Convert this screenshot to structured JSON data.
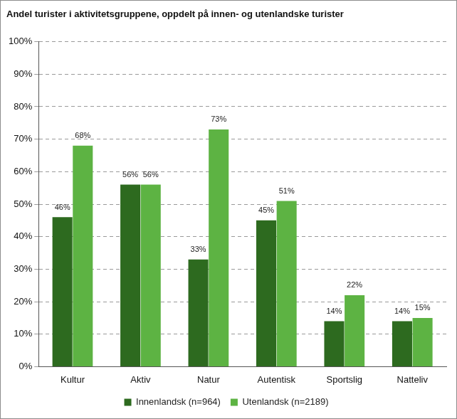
{
  "chart_data": {
    "type": "bar",
    "title": "Andel turister i aktivitetsgruppene, oppdelt på innen- og utenlandske turister",
    "categories": [
      "Kultur",
      "Aktiv",
      "Natur",
      "Autentisk",
      "Sportslig",
      "Natteliv"
    ],
    "series": [
      {
        "name": "Innenlandsk (n=964)",
        "color": "#2d6a1f",
        "values": [
          46,
          56,
          33,
          45,
          14,
          14
        ],
        "value_labels": [
          "46%",
          "56%",
          "33%",
          "45%",
          "14%",
          "14%"
        ]
      },
      {
        "name": "Utenlandsk (n=2189)",
        "color": "#5db343",
        "values": [
          68,
          56,
          73,
          51,
          22,
          15
        ],
        "value_labels": [
          "68%",
          "56%",
          "73%",
          "51%",
          "22%",
          "15%"
        ]
      }
    ],
    "ylim": [
      0,
      100
    ],
    "yticks": [
      {
        "value": 0,
        "label": "0%"
      },
      {
        "value": 10,
        "label": "10%"
      },
      {
        "value": 20,
        "label": "20%"
      },
      {
        "value": 30,
        "label": "30%"
      },
      {
        "value": 40,
        "label": "40%"
      },
      {
        "value": 50,
        "label": "50%"
      },
      {
        "value": 60,
        "label": "60%"
      },
      {
        "value": 70,
        "label": "70%"
      },
      {
        "value": 80,
        "label": "80%"
      },
      {
        "value": 90,
        "label": "90%"
      },
      {
        "value": 100,
        "label": "100%"
      }
    ],
    "grid": true,
    "legend": "bottom",
    "data_labels": true
  }
}
